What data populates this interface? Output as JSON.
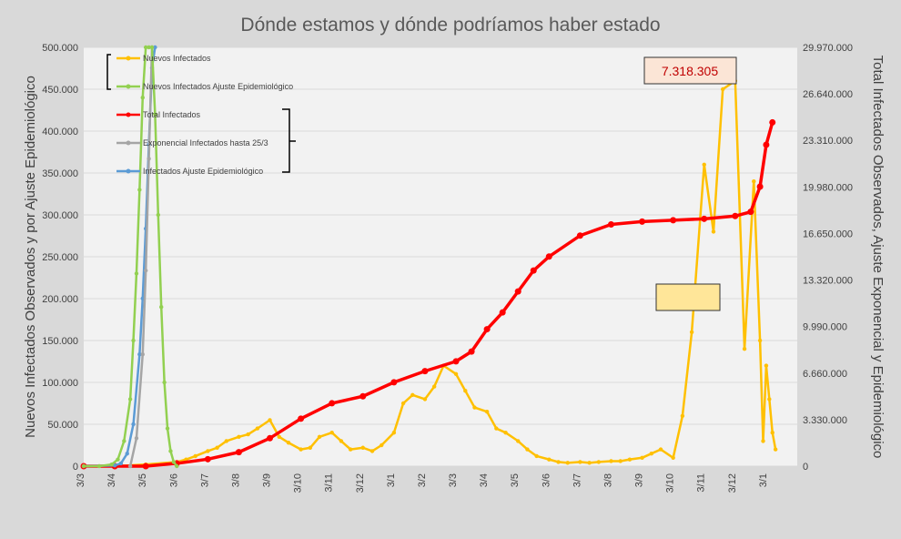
{
  "chart_data": {
    "type": "line",
    "title": "Dónde estamos y dónde podríamos haber estado",
    "ylabel_left": "Nuevos Infectados Observados y por Ajuste Epidemiológico",
    "ylabel_right": "Total Infectados Observados, Ajuste Exponencial y Epidemiológico",
    "y_left_range": [
      0,
      500000
    ],
    "y_right_range": [
      0,
      29970000
    ],
    "y_left_ticks": [
      "0",
      "50.000",
      "100.000",
      "150.000",
      "200.000",
      "250.000",
      "300.000",
      "350.000",
      "400.000",
      "450.000",
      "500.000"
    ],
    "y_right_ticks": [
      "0",
      "3.330.000",
      "6.660.000",
      "9.990.000",
      "13.320.000",
      "16.650.000",
      "19.980.000",
      "23.310.000",
      "26.640.000",
      "29.970.000"
    ],
    "x_ticks": [
      "3/3",
      "3/4",
      "3/5",
      "3/6",
      "3/7",
      "3/8",
      "3/9",
      "3/10",
      "3/11",
      "3/12",
      "3/1",
      "3/2",
      "3/3",
      "3/4",
      "3/5",
      "3/6",
      "3/7",
      "3/8",
      "3/9",
      "3/10",
      "3/11",
      "3/12",
      "3/1"
    ],
    "grid": true,
    "callout": "7.318.305",
    "series": [
      {
        "name": "Nuevos Infectados",
        "axis": "left",
        "color": "#ffc000",
        "x": [
          0,
          1,
          2,
          3,
          3.3,
          3.6,
          4,
          4.3,
          4.6,
          5,
          5.3,
          5.6,
          6,
          6.3,
          6.6,
          7,
          7.3,
          7.6,
          8,
          8.3,
          8.6,
          9,
          9.3,
          9.6,
          10,
          10.3,
          10.6,
          11,
          11.3,
          11.6,
          12,
          12.3,
          12.6,
          13,
          13.3,
          13.6,
          14,
          14.3,
          14.6,
          15,
          15.3,
          15.6,
          16,
          16.3,
          16.6,
          17,
          17.3,
          17.6,
          18,
          18.3,
          18.6,
          19,
          19.3,
          19.6,
          20,
          20.3,
          20.6,
          21,
          21.3,
          21.6,
          21.8,
          21.9,
          22,
          22.1,
          22.2,
          22.3
        ],
        "values": [
          0,
          0,
          2000,
          5000,
          8000,
          12000,
          18000,
          22000,
          30000,
          35000,
          38000,
          45000,
          55000,
          35000,
          28000,
          20000,
          22000,
          35000,
          40000,
          30000,
          20000,
          22000,
          18000,
          25000,
          40000,
          75000,
          85000,
          80000,
          95000,
          120000,
          110000,
          90000,
          70000,
          65000,
          45000,
          40000,
          30000,
          20000,
          12000,
          8000,
          5000,
          4000,
          5000,
          4000,
          5000,
          6000,
          6000,
          8000,
          10000,
          15000,
          20000,
          10000,
          60000,
          160000,
          360000,
          280000,
          450000,
          460000,
          140000,
          340000,
          150000,
          30000,
          120000,
          80000,
          40000,
          20000
        ]
      },
      {
        "name": "Nuevos Infectados Ajuste Epidemiológico",
        "axis": "left",
        "color": "#92d050",
        "x": [
          0,
          0.5,
          0.9,
          1.1,
          1.3,
          1.5,
          1.6,
          1.7,
          1.8,
          1.9,
          2.0,
          2.1,
          2.2,
          2.3,
          2.4,
          2.5,
          2.6,
          2.7,
          2.8,
          2.9,
          3.0
        ],
        "values": [
          0,
          0,
          2000,
          8000,
          30000,
          80000,
          150000,
          230000,
          330000,
          440000,
          500000,
          500000,
          500000,
          420000,
          300000,
          190000,
          100000,
          45000,
          18000,
          5000,
          0
        ]
      },
      {
        "name": "Total Infectados",
        "axis": "right",
        "color": "#ff0000",
        "x": [
          0,
          1,
          2,
          3,
          4,
          5,
          6,
          7,
          8,
          9,
          10,
          11,
          12,
          12.5,
          13,
          13.5,
          14,
          14.5,
          15,
          16,
          17,
          18,
          19,
          20,
          21,
          21.5,
          21.8,
          22,
          22.2
        ],
        "values": [
          0,
          0,
          0,
          200000,
          500000,
          1000000,
          2000000,
          3400000,
          4500000,
          5000000,
          6000000,
          6800000,
          7500000,
          8200000,
          9800000,
          11000000,
          12500000,
          14000000,
          15000000,
          16500000,
          17300000,
          17500000,
          17600000,
          17700000,
          17900000,
          18200000,
          20000000,
          23000000,
          24600000
        ]
      },
      {
        "name": "Exponencial Infectados hasta 25/3",
        "axis": "right",
        "color": "#a5a5a5",
        "x": [
          1.5,
          1.7,
          1.9,
          2.0,
          2.1,
          2.2
        ],
        "values": [
          0,
          2000000,
          8000000,
          14000000,
          22000000,
          30000000
        ]
      },
      {
        "name": "Infectados Ajuste Epidemiológico",
        "axis": "right",
        "color": "#5b9bd5",
        "x": [
          0,
          1,
          1.2,
          1.4,
          1.6,
          1.8,
          1.9,
          2.0,
          2.1,
          2.2,
          2.3
        ],
        "values": [
          0,
          50000,
          200000,
          900000,
          3000000,
          8000000,
          12000000,
          17000000,
          23000000,
          28500000,
          30000000
        ]
      }
    ]
  }
}
